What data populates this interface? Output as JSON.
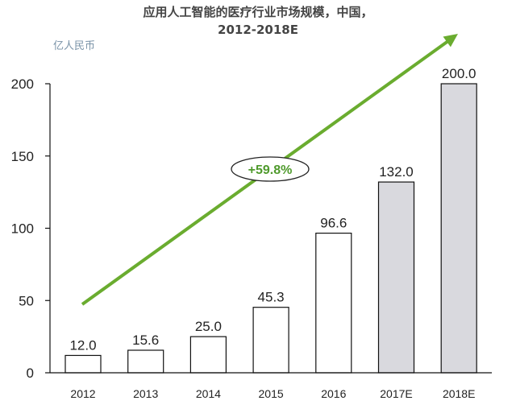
{
  "header": {
    "title_line1": "应用人工智能的医疗行业市场规模，中国，",
    "title_line2": "2012-2018E",
    "unit": "亿人民币"
  },
  "chart_data": {
    "type": "bar",
    "title": "应用人工智能的医疗行业市场规模，中国，2012-2018E",
    "ylabel": "亿人民币",
    "xlabel": "",
    "categories": [
      "2012",
      "2013",
      "2014",
      "2015",
      "2016",
      "2017E",
      "2018E"
    ],
    "values": [
      12.0,
      15.6,
      25.0,
      45.3,
      96.6,
      132.0,
      200.0
    ],
    "value_labels": [
      "12.0",
      "15.6",
      "25.0",
      "45.3",
      "96.6",
      "132.0",
      "200.0"
    ],
    "forecast": [
      false,
      false,
      false,
      false,
      false,
      true,
      true
    ],
    "ylim": [
      0,
      200
    ],
    "yticks": [
      0,
      50,
      100,
      150,
      200
    ],
    "grid": false,
    "annotation": "+59.8%",
    "colors": {
      "actual_fill": "#ffffff",
      "forecast_fill": "#d9d9de",
      "bar_stroke": "#111111",
      "arrow": "#6aac2f",
      "annotation": "#4f9a2c"
    }
  }
}
